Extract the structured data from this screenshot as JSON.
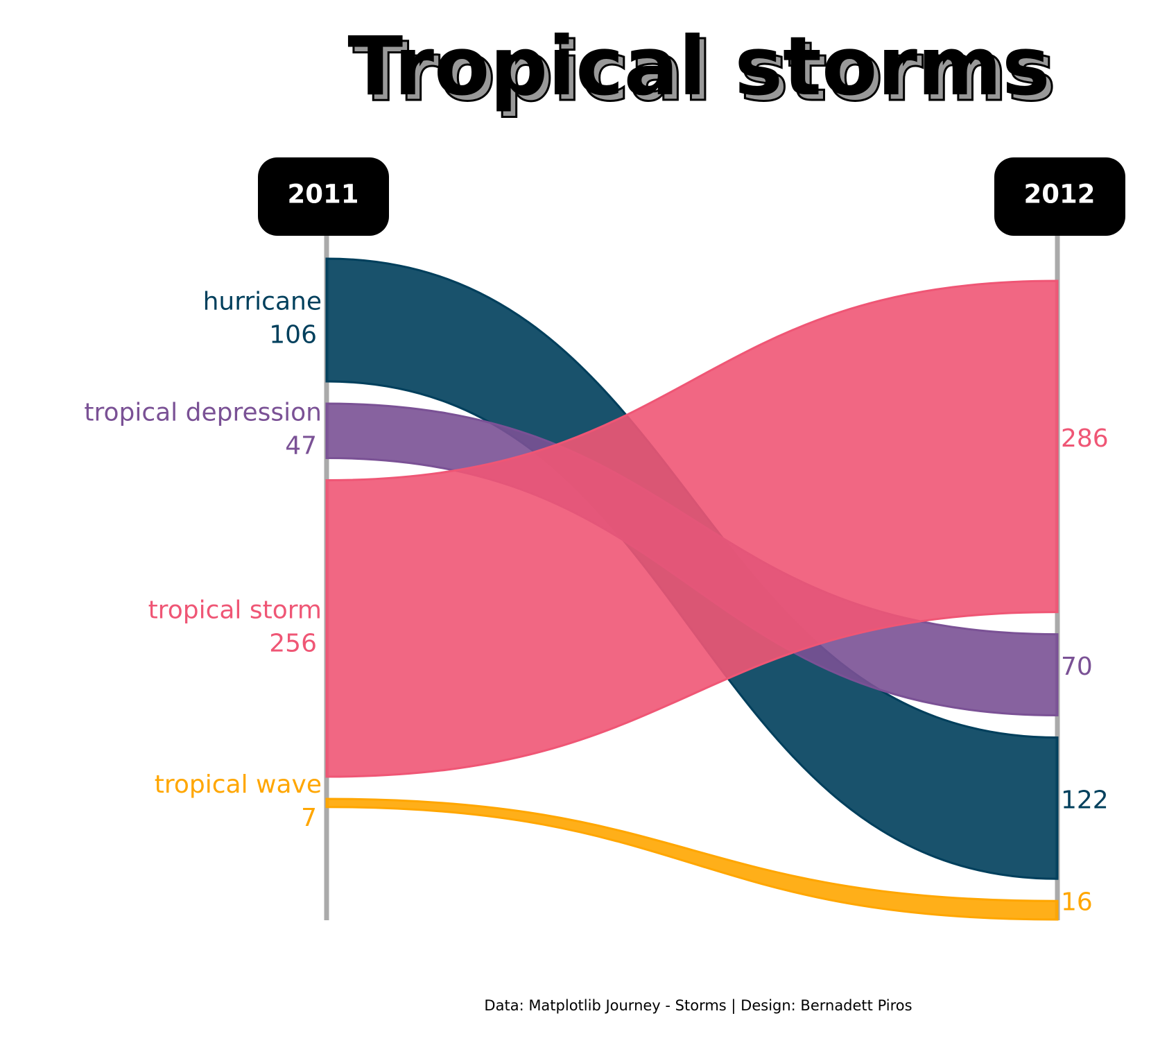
{
  "chart_data": {
    "type": "alluvial",
    "title": "Tropical storms",
    "credit": "Data: Matplotlib Journey - Storms | Design: Bernadett Piros",
    "years": [
      "2011",
      "2012"
    ],
    "series": [
      {
        "name": "hurricane",
        "color": "#003f5c",
        "values": [
          106,
          122
        ]
      },
      {
        "name": "tropical depression",
        "color": "#7a5195",
        "values": [
          47,
          70
        ]
      },
      {
        "name": "tropical storm",
        "color": "#ef5675",
        "values": [
          256,
          286
        ]
      },
      {
        "name": "tropical wave",
        "color": "#ffa600",
        "values": [
          7,
          16
        ]
      }
    ],
    "stack_order_2012": [
      "tropical storm",
      "tropical depression",
      "hurricane",
      "tropical wave"
    ]
  }
}
